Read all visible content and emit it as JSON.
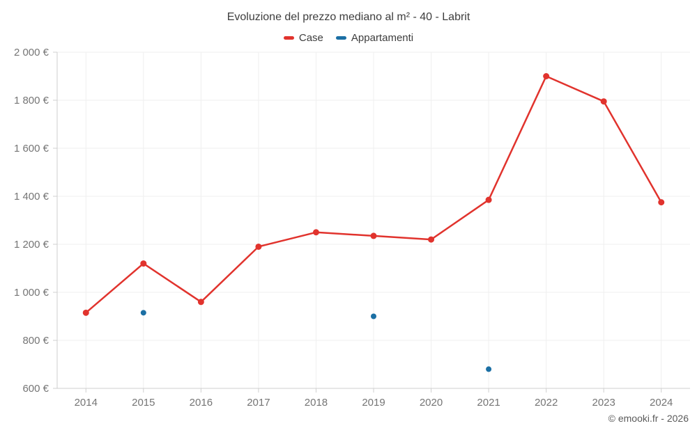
{
  "chart_data": {
    "type": "line",
    "title": "Evoluzione del prezzo mediano al m² - 40 - Labrit",
    "footer": "© emooki.fr - 2026",
    "categories": [
      "2014",
      "2015",
      "2016",
      "2017",
      "2018",
      "2019",
      "2020",
      "2021",
      "2022",
      "2023",
      "2024"
    ],
    "series": [
      {
        "name": "Case",
        "type": "line",
        "color": "#e1332d",
        "marker_radius": 4.5,
        "values": [
          915,
          1120,
          960,
          1190,
          1250,
          1235,
          1220,
          1385,
          1900,
          1795,
          1375
        ]
      },
      {
        "name": "Appartamenti",
        "type": "scatter",
        "color": "#1b6fa4",
        "marker_radius": 4,
        "values": [
          null,
          915,
          null,
          null,
          null,
          900,
          null,
          680,
          null,
          null,
          null
        ]
      }
    ],
    "xlabel": "",
    "ylabel": "",
    "ylim": [
      600,
      2000
    ],
    "yticks": [
      600,
      800,
      1000,
      1200,
      1400,
      1600,
      1800,
      2000
    ],
    "ytick_labels": [
      "600 €",
      "800 €",
      "1 000 €",
      "1 200 €",
      "1 400 €",
      "1 600 €",
      "1 800 €",
      "2 000 €"
    ],
    "grid": true,
    "legend_position": "top-center",
    "currency": "€"
  }
}
